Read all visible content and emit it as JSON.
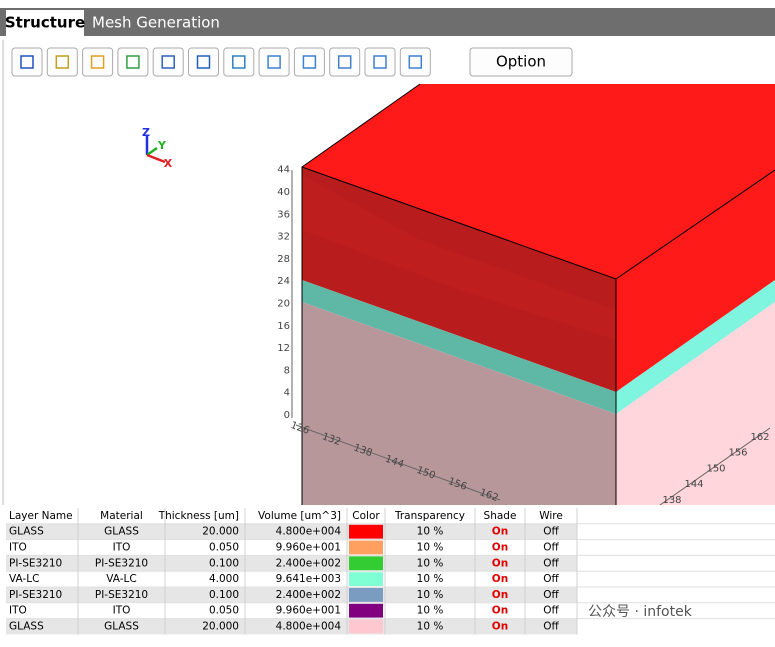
{
  "tabs": [
    "Structure",
    "Mesh Generation"
  ],
  "toolbar": {
    "option": "Option"
  },
  "triad": {
    "z": "Z",
    "y": "Y",
    "x": "X"
  },
  "axes": {
    "vertical": [
      "0",
      "4",
      "8",
      "12",
      "16",
      "20",
      "24",
      "28",
      "32",
      "36",
      "40",
      "44"
    ],
    "front": [
      "126",
      "132",
      "138",
      "144",
      "150",
      "156",
      "162"
    ],
    "side": [
      "138",
      "144",
      "150",
      "156",
      "162"
    ]
  },
  "table": {
    "headers": [
      "Layer Name",
      "Material",
      "Thickness [um]",
      "Volume [um^3]",
      "Color",
      "Transparency",
      "Shade",
      "Wire"
    ],
    "rows": [
      {
        "name": "GLASS",
        "material": "GLASS",
        "thickness": "20.000",
        "volume": "4.800e+004",
        "color": "#ff0000",
        "transparency": "10 %",
        "shade": "On",
        "wire": "Off"
      },
      {
        "name": "ITO",
        "material": "ITO",
        "thickness": "0.050",
        "volume": "9.960e+001",
        "color": "#ffa060",
        "transparency": "10 %",
        "shade": "On",
        "wire": "Off"
      },
      {
        "name": "PI-SE3210",
        "material": "PI-SE3210",
        "thickness": "0.100",
        "volume": "2.400e+002",
        "color": "#33cc33",
        "transparency": "10 %",
        "shade": "On",
        "wire": "Off"
      },
      {
        "name": "VA-LC",
        "material": "VA-LC",
        "thickness": "4.000",
        "volume": "9.641e+003",
        "color": "#80ffd4",
        "transparency": "10 %",
        "shade": "On",
        "wire": "Off"
      },
      {
        "name": "PI-SE3210",
        "material": "PI-SE3210",
        "thickness": "0.100",
        "volume": "2.400e+002",
        "color": "#7a9cc0",
        "transparency": "10 %",
        "shade": "On",
        "wire": "Off"
      },
      {
        "name": "ITO",
        "material": "ITO",
        "thickness": "0.050",
        "volume": "9.960e+001",
        "color": "#800080",
        "transparency": "10 %",
        "shade": "On",
        "wire": "Off"
      },
      {
        "name": "GLASS",
        "material": "GLASS",
        "thickness": "20.000",
        "volume": "4.800e+004",
        "color": "#ffc8d0",
        "transparency": "10 %",
        "shade": "On",
        "wire": "Off"
      }
    ]
  },
  "watermark": "公众号 · infotek"
}
